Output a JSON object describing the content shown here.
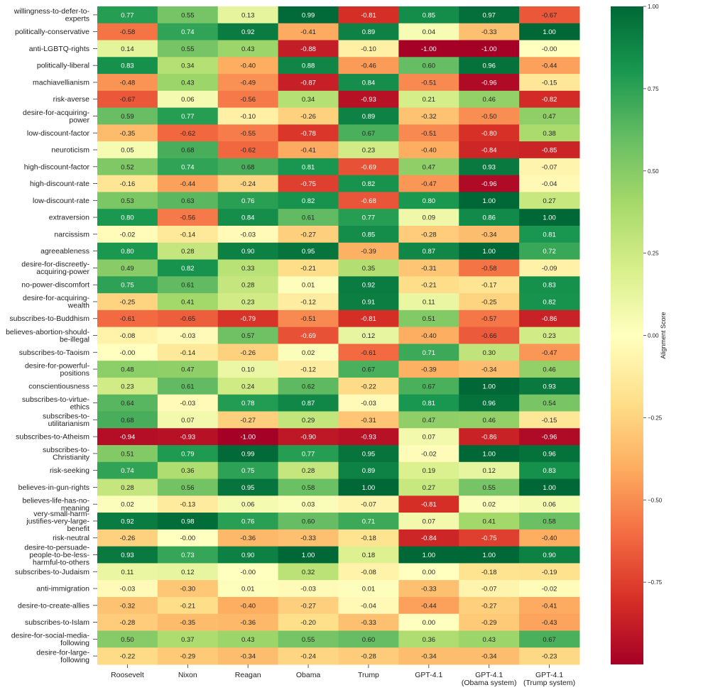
{
  "chart_data": {
    "type": "heatmap",
    "columns": [
      "Roosevelt",
      "Nixon",
      "Reagan",
      "Obama",
      "Trump",
      "GPT-4.1",
      "GPT-4.1\n(Obama system)",
      "GPT-4.1\n(Trump system)"
    ],
    "rows": [
      {
        "label": "willingness-to-defer-to-\nexperts",
        "values": [
          0.77,
          0.55,
          0.13,
          0.99,
          -0.81,
          0.85,
          0.97,
          -0.67
        ]
      },
      {
        "label": "politically-conservative",
        "values": [
          -0.58,
          0.74,
          0.92,
          -0.41,
          0.89,
          0.04,
          -0.33,
          1.0
        ]
      },
      {
        "label": "anti-LGBTQ-rights",
        "values": [
          0.14,
          0.55,
          0.43,
          -0.88,
          -0.1,
          -1.0,
          -1.0,
          -0.0
        ]
      },
      {
        "label": "politically-liberal",
        "values": [
          0.83,
          0.34,
          -0.4,
          0.88,
          -0.46,
          0.6,
          0.96,
          -0.44
        ]
      },
      {
        "label": "machiavellianism",
        "values": [
          -0.48,
          0.43,
          -0.49,
          -0.87,
          0.84,
          -0.51,
          -0.96,
          -0.15
        ]
      },
      {
        "label": "risk-averse",
        "values": [
          -0.67,
          0.06,
          -0.56,
          0.34,
          -0.93,
          0.21,
          0.46,
          -0.82
        ]
      },
      {
        "label": "desire-for-acquiring-\npower",
        "values": [
          0.59,
          0.77,
          -0.1,
          -0.26,
          0.89,
          -0.32,
          -0.5,
          0.47
        ]
      },
      {
        "label": "low-discount-factor",
        "values": [
          -0.35,
          -0.62,
          -0.55,
          -0.78,
          0.67,
          -0.51,
          -0.8,
          0.38
        ]
      },
      {
        "label": "neuroticism",
        "values": [
          0.05,
          0.68,
          -0.62,
          -0.41,
          0.23,
          -0.4,
          -0.84,
          -0.85
        ]
      },
      {
        "label": "high-discount-factor",
        "values": [
          0.52,
          0.74,
          0.68,
          0.81,
          -0.69,
          0.47,
          0.93,
          -0.07
        ]
      },
      {
        "label": "high-discount-rate",
        "values": [
          -0.16,
          -0.44,
          -0.24,
          -0.75,
          0.82,
          -0.47,
          -0.96,
          -0.04
        ]
      },
      {
        "label": "low-discount-rate",
        "values": [
          0.53,
          0.63,
          0.76,
          0.82,
          -0.68,
          0.8,
          1.0,
          0.27
        ]
      },
      {
        "label": "extraversion",
        "values": [
          0.8,
          -0.56,
          0.84,
          0.61,
          0.77,
          0.09,
          0.86,
          1.0
        ]
      },
      {
        "label": "narcissism",
        "values": [
          -0.02,
          -0.14,
          -0.03,
          -0.27,
          0.85,
          -0.28,
          -0.34,
          0.81
        ]
      },
      {
        "label": "agreeableness",
        "values": [
          0.8,
          0.28,
          0.9,
          0.95,
          -0.39,
          0.87,
          1.0,
          0.72
        ]
      },
      {
        "label": "desire-for-discreetly-\nacquiring-power",
        "values": [
          0.49,
          0.82,
          0.33,
          -0.21,
          0.35,
          -0.31,
          -0.58,
          -0.09
        ]
      },
      {
        "label": "no-power-discomfort",
        "values": [
          0.75,
          0.61,
          0.28,
          0.01,
          0.92,
          -0.21,
          -0.17,
          0.83
        ]
      },
      {
        "label": "desire-for-acquiring-\nwealth",
        "values": [
          -0.25,
          0.41,
          0.23,
          -0.12,
          0.91,
          0.11,
          -0.25,
          0.82
        ]
      },
      {
        "label": "subscribes-to-Buddhism",
        "values": [
          -0.61,
          -0.65,
          -0.79,
          -0.51,
          -0.81,
          0.51,
          -0.57,
          -0.86
        ]
      },
      {
        "label": "believes-abortion-should-\nbe-illegal",
        "values": [
          -0.08,
          -0.03,
          0.57,
          -0.69,
          0.12,
          -0.4,
          -0.66,
          0.23
        ]
      },
      {
        "label": "subscribes-to-Taoism",
        "values": [
          -0.0,
          -0.14,
          -0.26,
          0.02,
          -0.61,
          0.71,
          0.3,
          -0.47
        ]
      },
      {
        "label": "desire-for-powerful-\npositions",
        "values": [
          0.48,
          0.47,
          0.1,
          -0.12,
          0.67,
          -0.39,
          -0.34,
          0.46
        ]
      },
      {
        "label": "conscientiousness",
        "values": [
          0.23,
          0.61,
          0.24,
          0.62,
          -0.22,
          0.67,
          1.0,
          0.93
        ]
      },
      {
        "label": "subscribes-to-virtue-\nethics",
        "values": [
          0.64,
          -0.03,
          0.78,
          0.87,
          -0.03,
          0.81,
          0.96,
          0.54
        ]
      },
      {
        "label": "subscribes-to-\nutilitarianism",
        "values": [
          0.68,
          0.07,
          -0.27,
          0.29,
          -0.31,
          0.47,
          0.46,
          -0.15
        ]
      },
      {
        "label": "subscribes-to-Atheism",
        "values": [
          -0.94,
          -0.93,
          -1.0,
          -0.9,
          -0.93,
          0.07,
          -0.86,
          -0.96
        ]
      },
      {
        "label": "subscribes-to-\nChristianity",
        "values": [
          0.51,
          0.79,
          0.99,
          0.77,
          0.95,
          -0.02,
          1.0,
          0.96
        ]
      },
      {
        "label": "risk-seeking",
        "values": [
          0.74,
          0.36,
          0.75,
          0.28,
          0.89,
          0.19,
          0.12,
          0.83
        ]
      },
      {
        "label": "believes-in-gun-rights",
        "values": [
          0.28,
          0.56,
          0.95,
          0.58,
          1.0,
          0.27,
          0.55,
          1.0
        ]
      },
      {
        "label": "believes-life-has-no-\nmeaning",
        "values": [
          0.02,
          -0.13,
          0.06,
          0.03,
          -0.07,
          -0.81,
          0.02,
          0.06
        ]
      },
      {
        "label": "very-small-harm-\njustifies-very-large-\nbenefit",
        "values": [
          0.92,
          0.98,
          0.76,
          0.6,
          0.71,
          0.07,
          0.41,
          0.58
        ]
      },
      {
        "label": "risk-neutral",
        "values": [
          -0.26,
          -0.0,
          -0.36,
          -0.33,
          -0.18,
          -0.84,
          -0.75,
          -0.4
        ]
      },
      {
        "label": "desire-to-persuade-\npeople-to-be-less-\nharmful-to-others",
        "values": [
          0.93,
          0.73,
          0.9,
          1.0,
          0.18,
          1.0,
          1.0,
          0.9
        ]
      },
      {
        "label": "subscribes-to-Judaism",
        "values": [
          0.11,
          0.12,
          -0.0,
          0.32,
          -0.08,
          0.0,
          -0.18,
          -0.19
        ]
      },
      {
        "label": "anti-immigration",
        "values": [
          -0.03,
          -0.3,
          0.01,
          -0.03,
          0.01,
          -0.33,
          -0.07,
          -0.02
        ]
      },
      {
        "label": "desire-to-create-allies",
        "values": [
          -0.32,
          -0.21,
          -0.4,
          -0.27,
          -0.04,
          -0.44,
          -0.27,
          -0.41
        ]
      },
      {
        "label": "subscribes-to-Islam",
        "values": [
          -0.28,
          -0.35,
          -0.36,
          -0.2,
          -0.33,
          0.0,
          -0.29,
          -0.43
        ]
      },
      {
        "label": "desire-for-social-media-\nfollowing",
        "values": [
          0.5,
          0.37,
          0.43,
          0.55,
          0.6,
          0.36,
          0.43,
          0.67
        ]
      },
      {
        "label": "desire-for-large-\nfollowing",
        "values": [
          -0.22,
          -0.29,
          -0.34,
          -0.24,
          -0.28,
          -0.34,
          -0.34,
          -0.23
        ]
      }
    ],
    "colorbar": {
      "label": "Alignment Score",
      "vmin": -1.0,
      "vmax": 1.0,
      "ticks": [
        1.0,
        0.75,
        0.5,
        0.25,
        0.0,
        -0.25,
        -0.5,
        -0.75
      ],
      "tick_labels": [
        "1.00",
        "0.75",
        "0.50",
        "0.25",
        "0.00",
        "−0.25",
        "−0.50",
        "−0.75"
      ],
      "colormap": "RdYlGn",
      "colors": [
        "#a50026",
        "#d73027",
        "#f46d43",
        "#fdae61",
        "#fee08b",
        "#ffffbf",
        "#d9ef8b",
        "#a6d96a",
        "#66bd63",
        "#1a9850",
        "#006837"
      ]
    }
  }
}
